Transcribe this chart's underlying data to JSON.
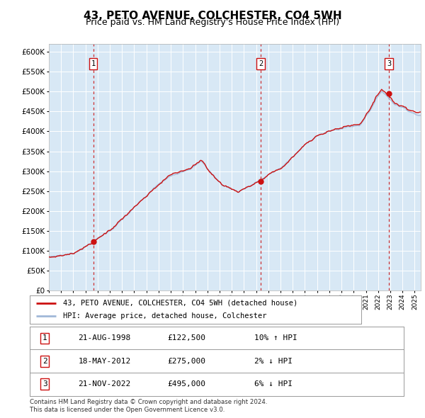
{
  "title": "43, PETO AVENUE, COLCHESTER, CO4 5WH",
  "subtitle": "Price paid vs. HM Land Registry's House Price Index (HPI)",
  "title_fontsize": 11,
  "subtitle_fontsize": 9,
  "plot_bg_color": "#d8e8f5",
  "hpi_line_color": "#a0b8d8",
  "price_line_color": "#cc1111",
  "sale_marker_color": "#cc1111",
  "vline_color": "#cc1111",
  "grid_color": "#ffffff",
  "ylim": [
    0,
    620000
  ],
  "yticks": [
    0,
    50000,
    100000,
    150000,
    200000,
    250000,
    300000,
    350000,
    400000,
    450000,
    500000,
    550000,
    600000
  ],
  "sales": [
    {
      "label": "1",
      "date": "21-AUG-1998",
      "year": 1998.64,
      "price": 122500,
      "pct": "10%",
      "dir": "↑"
    },
    {
      "label": "2",
      "date": "18-MAY-2012",
      "year": 2012.38,
      "price": 275000,
      "pct": "2%",
      "dir": "↓"
    },
    {
      "label": "3",
      "date": "21-NOV-2022",
      "year": 2022.89,
      "price": 495000,
      "pct": "6%",
      "dir": "↓"
    }
  ],
  "legend_line1": "43, PETO AVENUE, COLCHESTER, CO4 5WH (detached house)",
  "legend_line2": "HPI: Average price, detached house, Colchester",
  "footnote": "Contains HM Land Registry data © Crown copyright and database right 2024.\nThis data is licensed under the Open Government Licence v3.0.",
  "start_year": 1995.0,
  "end_year": 2025.5
}
